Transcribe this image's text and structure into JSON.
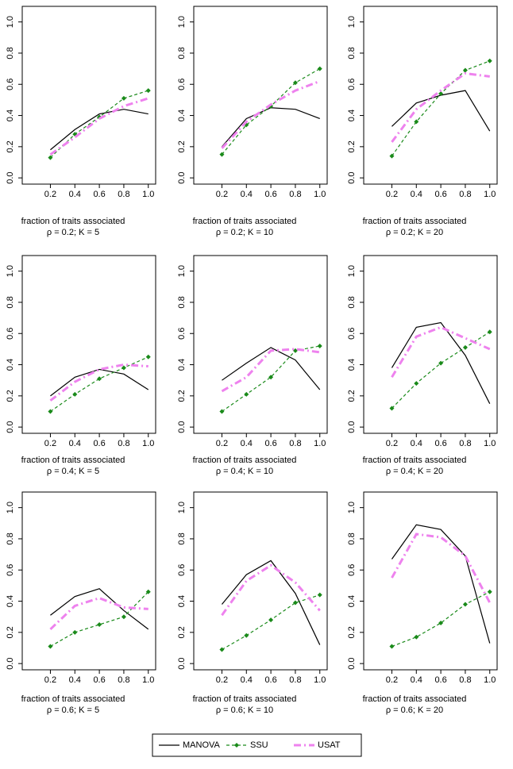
{
  "chart_data": [
    {
      "type": "line",
      "xlabel": "fraction of traits associated",
      "subtitle": "ρ = 0.2; K = 5",
      "x": [
        0.2,
        0.4,
        0.6,
        0.8,
        1
      ],
      "xlim": [
        -0.03,
        1.06
      ],
      "ylim": [
        -0.04,
        1.1
      ],
      "xticks": [
        0.2,
        0.4,
        0.6,
        0.8,
        {
          "value": 1,
          "label": "1.0"
        }
      ],
      "yticks": [
        {
          "value": 0,
          "label": "0.0"
        },
        0.2,
        0.4,
        0.6,
        0.8,
        {
          "value": 1,
          "label": "1.0"
        }
      ],
      "series": [
        {
          "color": "#000000",
          "values": [
            0.18,
            0.31,
            0.41,
            0.44,
            0.41
          ]
        },
        {
          "color": "#1a8a1a",
          "values": [
            0.13,
            0.28,
            0.39,
            0.51,
            0.56
          ]
        },
        {
          "color": "#ee82ee",
          "values": [
            0.15,
            0.26,
            0.38,
            0.46,
            0.51
          ]
        }
      ]
    },
    {
      "type": "line",
      "xlabel": "fraction of traits associated",
      "subtitle": "ρ = 0.2; K = 10",
      "x": [
        0.2,
        0.4,
        0.6,
        0.8,
        1
      ],
      "xlim": [
        -0.03,
        1.06
      ],
      "ylim": [
        -0.04,
        1.1
      ],
      "xticks": [
        0.2,
        0.4,
        0.6,
        0.8,
        {
          "value": 1,
          "label": "1.0"
        }
      ],
      "yticks": [
        {
          "value": 0,
          "label": "0.0"
        },
        0.2,
        0.4,
        0.6,
        0.8,
        {
          "value": 1,
          "label": "1.0"
        }
      ],
      "series": [
        {
          "color": "#000000",
          "values": [
            0.2,
            0.38,
            0.45,
            0.44,
            0.38
          ]
        },
        {
          "color": "#1a8a1a",
          "values": [
            0.15,
            0.34,
            0.46,
            0.61,
            0.7
          ]
        },
        {
          "color": "#ee82ee",
          "values": [
            0.19,
            0.36,
            0.47,
            0.56,
            0.62
          ]
        }
      ]
    },
    {
      "type": "line",
      "xlabel": "fraction of traits associated",
      "subtitle": "ρ = 0.2; K = 20",
      "x": [
        0.2,
        0.4,
        0.6,
        0.8,
        1
      ],
      "xlim": [
        -0.03,
        1.06
      ],
      "ylim": [
        -0.04,
        1.1
      ],
      "xticks": [
        0.2,
        0.4,
        0.6,
        0.8,
        {
          "value": 1,
          "label": "1.0"
        }
      ],
      "yticks": [
        {
          "value": 0,
          "label": "0.0"
        },
        0.2,
        0.4,
        0.6,
        0.8,
        {
          "value": 1,
          "label": "1.0"
        }
      ],
      "series": [
        {
          "color": "#000000",
          "values": [
            0.33,
            0.48,
            0.53,
            0.56,
            0.3
          ]
        },
        {
          "color": "#1a8a1a",
          "values": [
            0.14,
            0.36,
            0.54,
            0.69,
            0.75
          ]
        },
        {
          "color": "#ee82ee",
          "values": [
            0.23,
            0.44,
            0.56,
            0.67,
            0.65
          ]
        }
      ]
    },
    {
      "type": "line",
      "xlabel": "fraction of traits associated",
      "subtitle": "ρ = 0.4; K = 5",
      "x": [
        0.2,
        0.4,
        0.6,
        0.8,
        1
      ],
      "xlim": [
        -0.03,
        1.06
      ],
      "ylim": [
        -0.04,
        1.1
      ],
      "xticks": [
        0.2,
        0.4,
        0.6,
        0.8,
        {
          "value": 1,
          "label": "1.0"
        }
      ],
      "yticks": [
        {
          "value": 0,
          "label": "0.0"
        },
        0.2,
        0.4,
        0.6,
        0.8,
        {
          "value": 1,
          "label": "1.0"
        }
      ],
      "series": [
        {
          "color": "#000000",
          "values": [
            0.2,
            0.32,
            0.37,
            0.34,
            0.24
          ]
        },
        {
          "color": "#1a8a1a",
          "values": [
            0.1,
            0.21,
            0.31,
            0.38,
            0.45
          ]
        },
        {
          "color": "#ee82ee",
          "values": [
            0.17,
            0.29,
            0.37,
            0.4,
            0.39
          ]
        }
      ]
    },
    {
      "type": "line",
      "xlabel": "fraction of traits associated",
      "subtitle": "ρ = 0.4; K = 10",
      "x": [
        0.2,
        0.4,
        0.6,
        0.8,
        1
      ],
      "xlim": [
        -0.03,
        1.06
      ],
      "ylim": [
        -0.04,
        1.1
      ],
      "xticks": [
        0.2,
        0.4,
        0.6,
        0.8,
        {
          "value": 1,
          "label": "1.0"
        }
      ],
      "yticks": [
        {
          "value": 0,
          "label": "0.0"
        },
        0.2,
        0.4,
        0.6,
        0.8,
        {
          "value": 1,
          "label": "1.0"
        }
      ],
      "series": [
        {
          "color": "#000000",
          "values": [
            0.3,
            0.41,
            0.51,
            0.43,
            0.24
          ]
        },
        {
          "color": "#1a8a1a",
          "values": [
            0.1,
            0.21,
            0.32,
            0.49,
            0.52
          ]
        },
        {
          "color": "#ee82ee",
          "values": [
            0.23,
            0.32,
            0.49,
            0.5,
            0.48
          ]
        }
      ]
    },
    {
      "type": "line",
      "xlabel": "fraction of traits associated",
      "subtitle": "ρ = 0.4; K = 20",
      "x": [
        0.2,
        0.4,
        0.6,
        0.8,
        1
      ],
      "xlim": [
        -0.03,
        1.06
      ],
      "ylim": [
        -0.04,
        1.1
      ],
      "xticks": [
        0.2,
        0.4,
        0.6,
        0.8,
        {
          "value": 1,
          "label": "1.0"
        }
      ],
      "yticks": [
        {
          "value": 0,
          "label": "0.0"
        },
        0.2,
        0.4,
        0.6,
        0.8,
        {
          "value": 1,
          "label": "1.0"
        }
      ],
      "series": [
        {
          "color": "#000000",
          "values": [
            0.38,
            0.64,
            0.67,
            0.46,
            0.15
          ]
        },
        {
          "color": "#1a8a1a",
          "values": [
            0.12,
            0.28,
            0.41,
            0.51,
            0.61
          ]
        },
        {
          "color": "#ee82ee",
          "values": [
            0.32,
            0.58,
            0.64,
            0.57,
            0.5
          ]
        }
      ]
    },
    {
      "type": "line",
      "xlabel": "fraction of traits associated",
      "subtitle": "ρ = 0.6; K = 5",
      "x": [
        0.2,
        0.4,
        0.6,
        0.8,
        1
      ],
      "xlim": [
        -0.03,
        1.06
      ],
      "ylim": [
        -0.04,
        1.1
      ],
      "xticks": [
        0.2,
        0.4,
        0.6,
        0.8,
        {
          "value": 1,
          "label": "1.0"
        }
      ],
      "yticks": [
        {
          "value": 0,
          "label": "0.0"
        },
        0.2,
        0.4,
        0.6,
        0.8,
        {
          "value": 1,
          "label": "1.0"
        }
      ],
      "series": [
        {
          "color": "#000000",
          "values": [
            0.31,
            0.43,
            0.48,
            0.34,
            0.22
          ]
        },
        {
          "color": "#1a8a1a",
          "values": [
            0.11,
            0.2,
            0.25,
            0.3,
            0.46
          ]
        },
        {
          "color": "#ee82ee",
          "values": [
            0.22,
            0.37,
            0.42,
            0.36,
            0.35
          ]
        }
      ]
    },
    {
      "type": "line",
      "xlabel": "fraction of traits associated",
      "subtitle": "ρ = 0.6; K = 10",
      "x": [
        0.2,
        0.4,
        0.6,
        0.8,
        1
      ],
      "xlim": [
        -0.03,
        1.06
      ],
      "ylim": [
        -0.04,
        1.1
      ],
      "xticks": [
        0.2,
        0.4,
        0.6,
        0.8,
        {
          "value": 1,
          "label": "1.0"
        }
      ],
      "yticks": [
        {
          "value": 0,
          "label": "0.0"
        },
        0.2,
        0.4,
        0.6,
        0.8,
        {
          "value": 1,
          "label": "1.0"
        }
      ],
      "series": [
        {
          "color": "#000000",
          "values": [
            0.38,
            0.57,
            0.66,
            0.45,
            0.12
          ]
        },
        {
          "color": "#1a8a1a",
          "values": [
            0.09,
            0.18,
            0.28,
            0.39,
            0.44
          ]
        },
        {
          "color": "#ee82ee",
          "values": [
            0.31,
            0.53,
            0.63,
            0.52,
            0.34
          ]
        }
      ]
    },
    {
      "type": "line",
      "xlabel": "fraction of traits associated",
      "subtitle": "ρ = 0.6; K = 20",
      "x": [
        0.2,
        0.4,
        0.6,
        0.8,
        1
      ],
      "xlim": [
        -0.03,
        1.06
      ],
      "ylim": [
        -0.04,
        1.1
      ],
      "xticks": [
        0.2,
        0.4,
        0.6,
        0.8,
        {
          "value": 1,
          "label": "1.0"
        }
      ],
      "yticks": [
        {
          "value": 0,
          "label": "0.0"
        },
        0.2,
        0.4,
        0.6,
        0.8,
        {
          "value": 1,
          "label": "1.0"
        }
      ],
      "series": [
        {
          "color": "#000000",
          "values": [
            0.67,
            0.89,
            0.86,
            0.69,
            0.13
          ]
        },
        {
          "color": "#1a8a1a",
          "values": [
            0.11,
            0.17,
            0.26,
            0.38,
            0.46
          ]
        },
        {
          "color": "#ee82ee",
          "values": [
            0.55,
            0.83,
            0.81,
            0.69,
            0.39
          ]
        }
      ]
    }
  ],
  "legend": {
    "items": [
      {
        "name": "MANOVA",
        "color": "#000000"
      },
      {
        "name": "SSU",
        "color": "#1a8a1a"
      },
      {
        "name": "USAT",
        "color": "#ee82ee"
      }
    ]
  }
}
